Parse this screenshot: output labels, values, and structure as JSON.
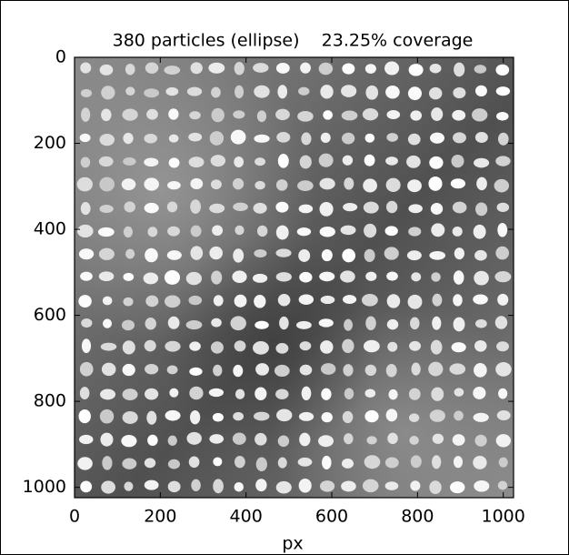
{
  "chart_data": {
    "type": "image",
    "title": "380 particles (ellipse)    23.25% coverage",
    "xlabel": "px",
    "xlim": [
      0,
      1024
    ],
    "ylim": [
      1024,
      0
    ],
    "xticks": [
      0,
      200,
      400,
      600,
      800,
      1000
    ],
    "yticks": [
      0,
      200,
      400,
      600,
      800,
      1000
    ]
  }
}
